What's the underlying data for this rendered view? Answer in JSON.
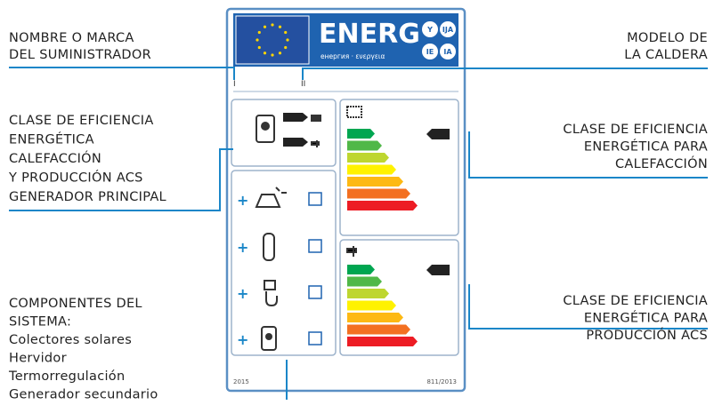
{
  "label": {
    "brand": "ENERG",
    "subtitle": "енергия · ενεργεια",
    "badges": [
      "Y",
      "IJA",
      "IE",
      "IA"
    ],
    "row_marks": [
      "I",
      "II"
    ],
    "footer": [
      "2015",
      "811/2013"
    ]
  },
  "annotations": {
    "supplier": [
      "NOMBRE O MARCA",
      "DEL SUMINISTRADOR"
    ],
    "main_class": [
      "CLASE DE EFICIENCIA",
      "ENERGÉTICA",
      "CALEFACCIÓN",
      "Y PRODUCCIÓN ACS",
      "GENERADOR PRINCIPAL"
    ],
    "components": [
      "COMPONENTES DEL",
      "SISTEMA:",
      "Colectores solares",
      "Hervidor",
      "Termorregulación",
      "Generador secundario"
    ],
    "model": [
      "MODELO DE",
      "LA CALDERA"
    ],
    "heating_class": [
      "CLASE DE EFICIENCIA",
      "ENERGÉTICA PARA",
      "CALEFACCIÓN"
    ],
    "acs_class": [
      "CLASE DE EFICIENCIA",
      "ENERGÉTICA PARA",
      "PRODUCCIÓN ACS"
    ]
  }
}
